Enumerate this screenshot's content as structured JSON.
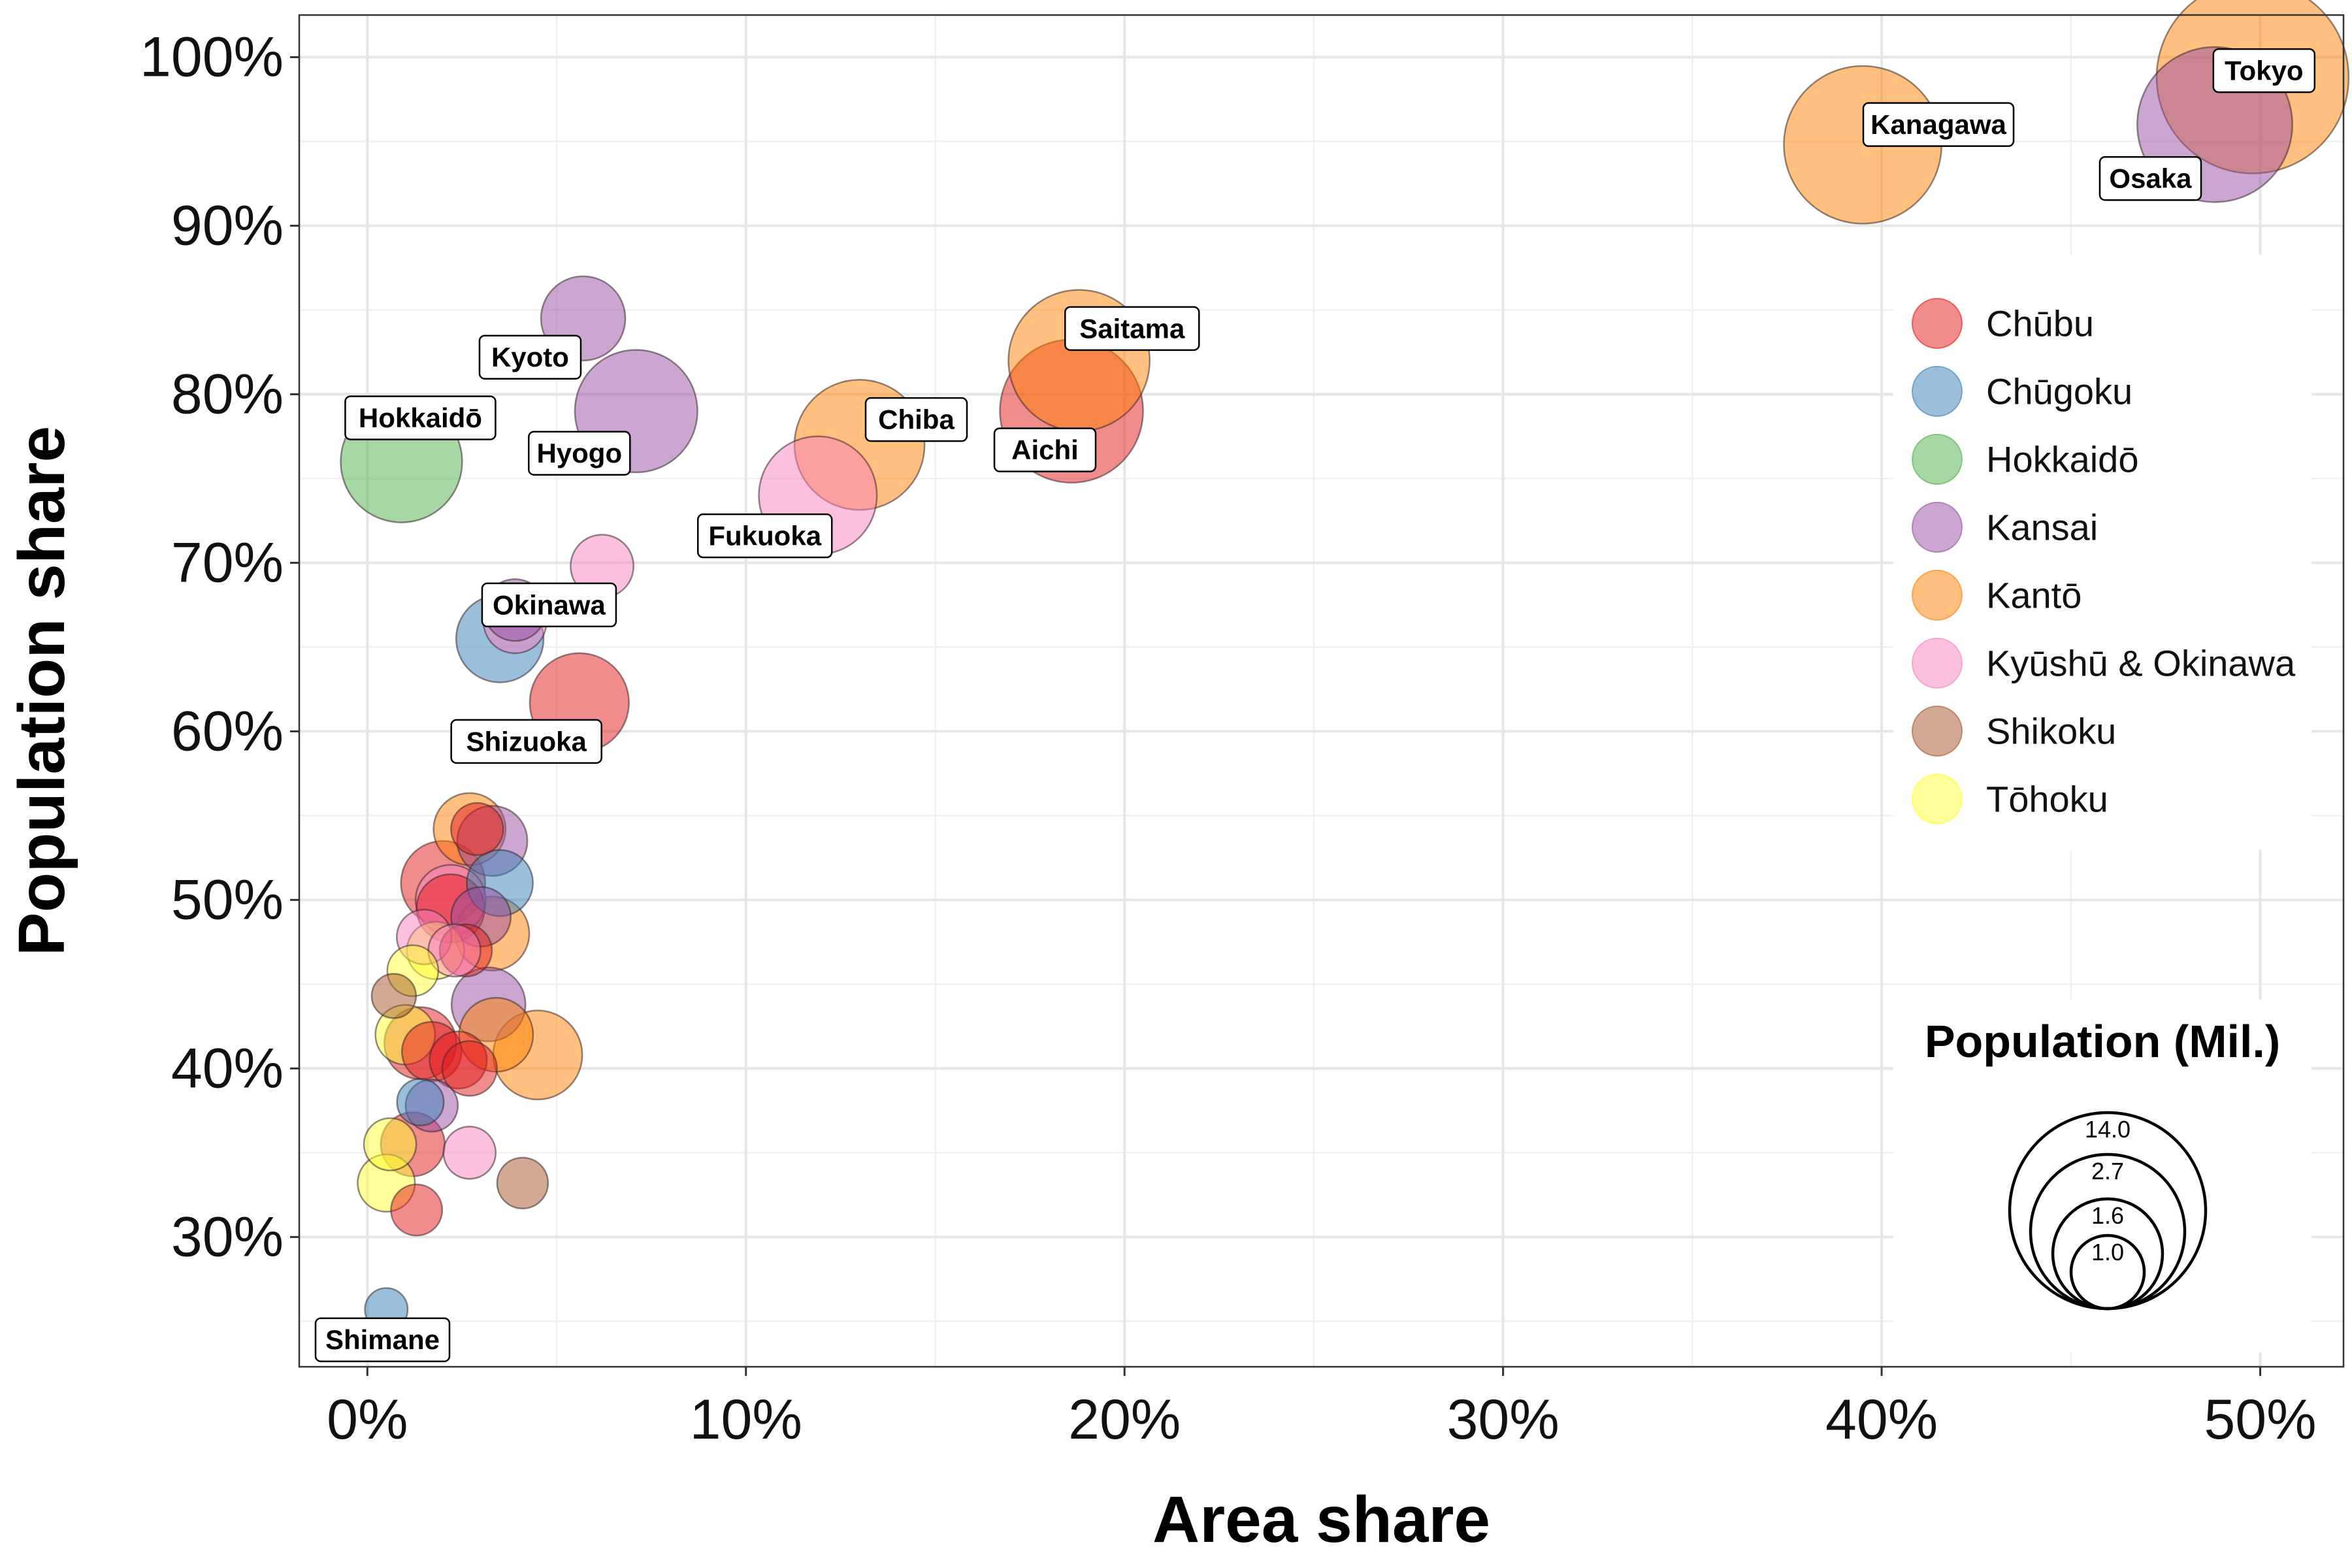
{
  "chart_data": {
    "type": "scatter",
    "xlabel": "Area share",
    "ylabel": "Population share",
    "xlim": [
      -0.018,
      0.522
    ],
    "ylim": [
      0.223,
      1.025
    ],
    "x_ticks": [
      0,
      0.1,
      0.2,
      0.3,
      0.4,
      0.5
    ],
    "x_tick_labels": [
      "0%",
      "10%",
      "20%",
      "30%",
      "40%",
      "50%"
    ],
    "y_ticks": [
      0.3,
      0.4,
      0.5,
      0.6,
      0.7,
      0.8,
      0.9,
      1.0
    ],
    "y_tick_labels": [
      "30%",
      "40%",
      "50%",
      "60%",
      "70%",
      "80%",
      "90%",
      "100%"
    ],
    "grid": true,
    "legend_position": "right",
    "colors": {
      "Chūbu": "#e41a1c",
      "Chūgoku": "#377eb8",
      "Hokkaidō": "#4daf4a",
      "Kansai": "#984ea3",
      "Kantō": "#ff7f00",
      "Kyūshū & Okinawa": "#f781bf",
      "Shikoku": "#a65628",
      "Tōhoku": "#ffff33"
    },
    "size_legend": {
      "title": "Population (Mil.)",
      "values": [
        14.0,
        2.7,
        1.6,
        1.0
      ],
      "labels": [
        "14.0",
        "2.7",
        "1.6",
        "1.0"
      ]
    },
    "points": [
      {
        "region": "Kantō",
        "x": 0.498,
        "y": 0.988,
        "pop": 13.5,
        "label": "Tokyo"
      },
      {
        "region": "Kansai",
        "x": 0.488,
        "y": 0.96,
        "pop": 8.8,
        "label": "Osaka"
      },
      {
        "region": "Kantō",
        "x": 0.395,
        "y": 0.948,
        "pop": 9.1,
        "label": "Kanagawa"
      },
      {
        "region": "Kantō",
        "x": 0.188,
        "y": 0.82,
        "pop": 7.3,
        "label": "Saitama"
      },
      {
        "region": "Chūbu",
        "x": 0.186,
        "y": 0.79,
        "pop": 7.5,
        "label": "Aichi"
      },
      {
        "region": "Kantō",
        "x": 0.13,
        "y": 0.77,
        "pop": 6.2,
        "label": "Chiba"
      },
      {
        "region": "Kyūshū & Okinawa",
        "x": 0.119,
        "y": 0.74,
        "pop": 5.1,
        "label": "Fukuoka"
      },
      {
        "region": "Kansai",
        "x": 0.057,
        "y": 0.845,
        "pop": 2.6,
        "label": "Kyoto"
      },
      {
        "region": "Kansai",
        "x": 0.071,
        "y": 0.79,
        "pop": 5.5,
        "label": "Hyogo"
      },
      {
        "region": "Hokkaidō",
        "x": 0.009,
        "y": 0.76,
        "pop": 5.4,
        "label": "Hokkaidō"
      },
      {
        "region": "Kyūshū & Okinawa",
        "x": 0.062,
        "y": 0.698,
        "pop": 1.45
      },
      {
        "region": "Kansai",
        "x": 0.039,
        "y": 0.672,
        "pop": 1.4
      },
      {
        "region": "Chūgoku",
        "x": 0.035,
        "y": 0.655,
        "pop": 2.8
      },
      {
        "region": "Kyūshū & Okinawa",
        "x": 0.039,
        "y": 0.665,
        "pop": 1.45,
        "label": "Okinawa"
      },
      {
        "region": "Chūbu",
        "x": 0.056,
        "y": 0.617,
        "pop": 3.6,
        "label": "Shizuoka"
      },
      {
        "region": "Chūgoku",
        "x": 0.005,
        "y": 0.257,
        "pop": 0.67,
        "label": "Shimane"
      },
      {
        "region": "Kantō",
        "x": 0.027,
        "y": 0.542,
        "pop": 1.9
      },
      {
        "region": "Chūbu",
        "x": 0.029,
        "y": 0.542,
        "pop": 1.0
      },
      {
        "region": "Kansai",
        "x": 0.033,
        "y": 0.535,
        "pop": 1.8
      },
      {
        "region": "Chūbu",
        "x": 0.02,
        "y": 0.51,
        "pop": 2.6
      },
      {
        "region": "Chūgoku",
        "x": 0.035,
        "y": 0.51,
        "pop": 1.6
      },
      {
        "region": "Kyūshū & Okinawa",
        "x": 0.022,
        "y": 0.5,
        "pop": 1.8
      },
      {
        "region": "Kansai",
        "x": 0.03,
        "y": 0.49,
        "pop": 1.3
      },
      {
        "region": "Kantō",
        "x": 0.033,
        "y": 0.48,
        "pop": 2.0
      },
      {
        "region": "Chūbu",
        "x": 0.022,
        "y": 0.495,
        "pop": 1.7
      },
      {
        "region": "Kyūshū & Okinawa",
        "x": 0.015,
        "y": 0.478,
        "pop": 1.1
      },
      {
        "region": "Tōhoku",
        "x": 0.018,
        "y": 0.47,
        "pop": 1.2
      },
      {
        "region": "Chūbu",
        "x": 0.026,
        "y": 0.47,
        "pop": 1.0
      },
      {
        "region": "Kyūshū & Okinawa",
        "x": 0.023,
        "y": 0.47,
        "pop": 1.0
      },
      {
        "region": "Shikoku",
        "x": 0.007,
        "y": 0.443,
        "pop": 0.72
      },
      {
        "region": "Tōhoku",
        "x": 0.012,
        "y": 0.458,
        "pop": 0.95
      },
      {
        "region": "Kansai",
        "x": 0.032,
        "y": 0.438,
        "pop": 2.0
      },
      {
        "region": "Kantō",
        "x": 0.034,
        "y": 0.42,
        "pop": 2.0
      },
      {
        "region": "Kantō",
        "x": 0.045,
        "y": 0.408,
        "pop": 2.9
      },
      {
        "region": "Tōhoku",
        "x": 0.01,
        "y": 0.42,
        "pop": 1.3
      },
      {
        "region": "Chūbu",
        "x": 0.014,
        "y": 0.415,
        "pop": 1.9
      },
      {
        "region": "Chūbu",
        "x": 0.017,
        "y": 0.41,
        "pop": 1.3
      },
      {
        "region": "Chūbu",
        "x": 0.024,
        "y": 0.405,
        "pop": 1.2
      },
      {
        "region": "Chūbu",
        "x": 0.027,
        "y": 0.4,
        "pop": 1.1
      },
      {
        "region": "Kansai",
        "x": 0.017,
        "y": 0.378,
        "pop": 1.0
      },
      {
        "region": "Chūgoku",
        "x": 0.014,
        "y": 0.38,
        "pop": 0.8
      },
      {
        "region": "Chūbu",
        "x": 0.012,
        "y": 0.355,
        "pop": 1.5
      },
      {
        "region": "Tōhoku",
        "x": 0.006,
        "y": 0.355,
        "pop": 1.0
      },
      {
        "region": "Kyūshū & Okinawa",
        "x": 0.027,
        "y": 0.35,
        "pop": 1.0
      },
      {
        "region": "Tōhoku",
        "x": 0.005,
        "y": 0.332,
        "pop": 1.2
      },
      {
        "region": "Shikoku",
        "x": 0.041,
        "y": 0.332,
        "pop": 0.95
      },
      {
        "region": "Chūbu",
        "x": 0.013,
        "y": 0.316,
        "pop": 0.96
      }
    ],
    "labels": [
      {
        "text": "Tokyo",
        "x": 0.501,
        "y": 0.992
      },
      {
        "text": "Kanagawa",
        "x": 0.415,
        "y": 0.96
      },
      {
        "text": "Osaka",
        "x": 0.471,
        "y": 0.928
      },
      {
        "text": "Saitama",
        "x": 0.202,
        "y": 0.839
      },
      {
        "text": "Aichi",
        "x": 0.179,
        "y": 0.767
      },
      {
        "text": "Chiba",
        "x": 0.145,
        "y": 0.785
      },
      {
        "text": "Fukuoka",
        "x": 0.105,
        "y": 0.716
      },
      {
        "text": "Kyoto",
        "x": 0.043,
        "y": 0.822
      },
      {
        "text": "Hyogo",
        "x": 0.056,
        "y": 0.765
      },
      {
        "text": "Hokkaidō",
        "x": 0.014,
        "y": 0.786
      },
      {
        "text": "Okinawa",
        "x": 0.048,
        "y": 0.675
      },
      {
        "text": "Shizuoka",
        "x": 0.042,
        "y": 0.594
      },
      {
        "text": "Shimane",
        "x": 0.004,
        "y": 0.239
      }
    ]
  }
}
